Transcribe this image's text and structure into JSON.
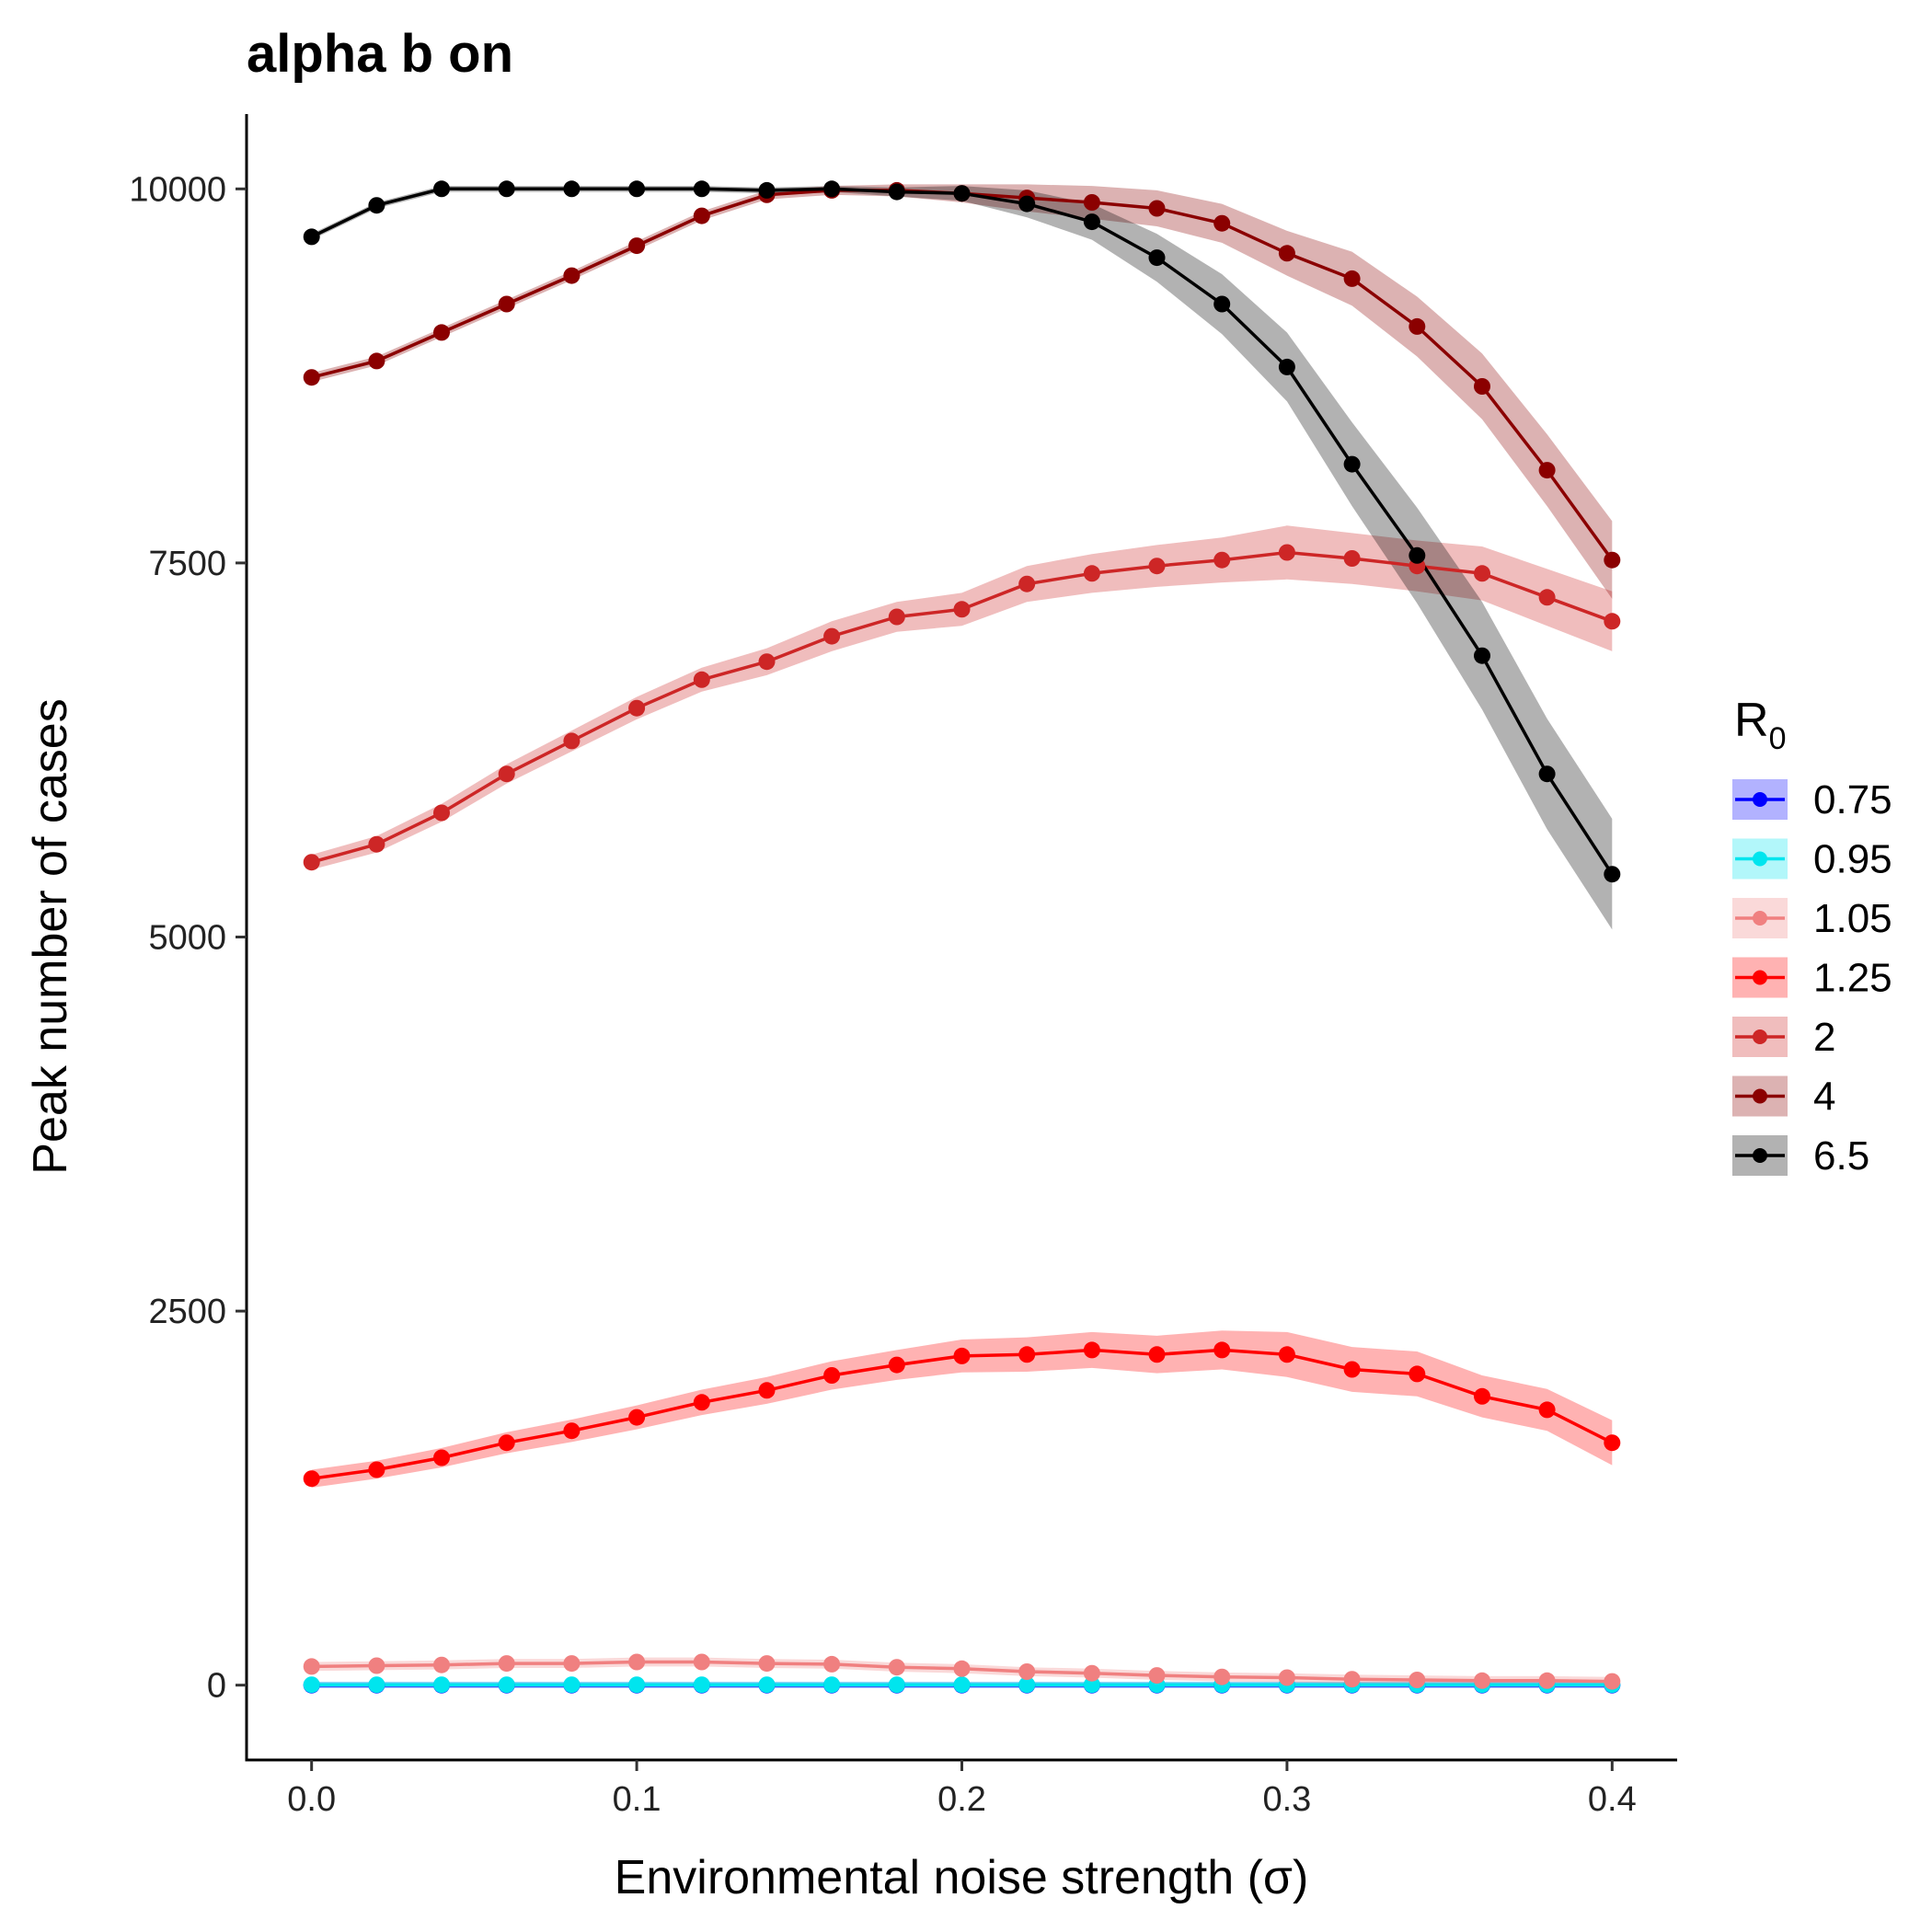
{
  "chart_data": {
    "type": "line",
    "title": "alpha b on",
    "xlabel": "Environmental noise strength (σ)",
    "ylabel": "Peak number of cases",
    "legend_title": "R",
    "legend_title_subscript": "0",
    "legend_position": "right",
    "grid": false,
    "xlim": [
      -0.02,
      0.42
    ],
    "ylim": [
      -500,
      10500
    ],
    "x_ticks": [
      0.0,
      0.1,
      0.2,
      0.3,
      0.4
    ],
    "x_tick_labels": [
      "0.0",
      "0.1",
      "0.2",
      "0.3",
      "0.4"
    ],
    "y_ticks": [
      0,
      2500,
      5000,
      7500,
      10000
    ],
    "y_tick_labels": [
      "0",
      "2500",
      "5000",
      "7500",
      "10000"
    ],
    "x": [
      0.0,
      0.02,
      0.04,
      0.06,
      0.08,
      0.1,
      0.12,
      0.14,
      0.16,
      0.18,
      0.2,
      0.22,
      0.24,
      0.26,
      0.28,
      0.3,
      0.32,
      0.34,
      0.36,
      0.38,
      0.4
    ],
    "series": [
      {
        "name": "0.75",
        "color": "#0000ff",
        "values": [
          0,
          0,
          0,
          0,
          0,
          0,
          0,
          0,
          0,
          0,
          0,
          0,
          0,
          0,
          0,
          0,
          0,
          0,
          0,
          0,
          0
        ],
        "band": 20
      },
      {
        "name": "0.95",
        "color": "#00e5ee",
        "values": [
          3,
          3,
          3,
          3,
          3,
          3,
          3,
          3,
          3,
          3,
          3,
          3,
          3,
          3,
          3,
          3,
          3,
          3,
          3,
          3,
          3
        ],
        "band": 20
      },
      {
        "name": "1.05",
        "color": "#f08080",
        "values": [
          125,
          130,
          135,
          145,
          145,
          155,
          155,
          145,
          140,
          120,
          110,
          90,
          80,
          65,
          55,
          50,
          40,
          35,
          30,
          30,
          25
        ],
        "band": 30
      },
      {
        "name": "1.25",
        "color": "#ff0000",
        "values": [
          1380,
          1440,
          1520,
          1620,
          1700,
          1790,
          1890,
          1970,
          2070,
          2140,
          2200,
          2210,
          2240,
          2210,
          2240,
          2210,
          2110,
          2080,
          1930,
          1840,
          1620
        ],
        "band": [
          60,
          60,
          65,
          70,
          75,
          80,
          85,
          90,
          95,
          100,
          110,
          115,
          120,
          125,
          130,
          150,
          150,
          150,
          140,
          140,
          150
        ]
      },
      {
        "name": "2",
        "color": "#cd2626",
        "values": [
          5500,
          5620,
          5830,
          6090,
          6310,
          6530,
          6720,
          6840,
          7010,
          7140,
          7190,
          7360,
          7430,
          7480,
          7520,
          7570,
          7530,
          7480,
          7430,
          7270,
          7110
        ],
        "band": [
          50,
          55,
          60,
          65,
          70,
          75,
          80,
          90,
          100,
          100,
          110,
          120,
          130,
          140,
          150,
          180,
          170,
          170,
          180,
          190,
          200
        ]
      },
      {
        "name": "4",
        "color": "#8b0000",
        "values": [
          8740,
          8850,
          9040,
          9230,
          9420,
          9620,
          9820,
          9960,
          9990,
          9990,
          9970,
          9940,
          9910,
          9870,
          9770,
          9570,
          9400,
          9080,
          8680,
          8120,
          7520
        ],
        "band": [
          30,
          30,
          30,
          30,
          30,
          30,
          30,
          30,
          30,
          40,
          60,
          90,
          110,
          120,
          130,
          150,
          180,
          200,
          220,
          240,
          260
        ]
      },
      {
        "name": "6.5",
        "color": "#000000",
        "values": [
          9680,
          9890,
          10000,
          10000,
          10000,
          10000,
          10000,
          9990,
          10000,
          9980,
          9970,
          9900,
          9780,
          9540,
          9230,
          8810,
          8160,
          7550,
          6880,
          6090,
          5420
        ],
        "band": [
          20,
          20,
          20,
          20,
          20,
          20,
          20,
          20,
          20,
          30,
          50,
          90,
          120,
          160,
          200,
          230,
          280,
          320,
          360,
          370,
          370
        ]
      }
    ]
  }
}
